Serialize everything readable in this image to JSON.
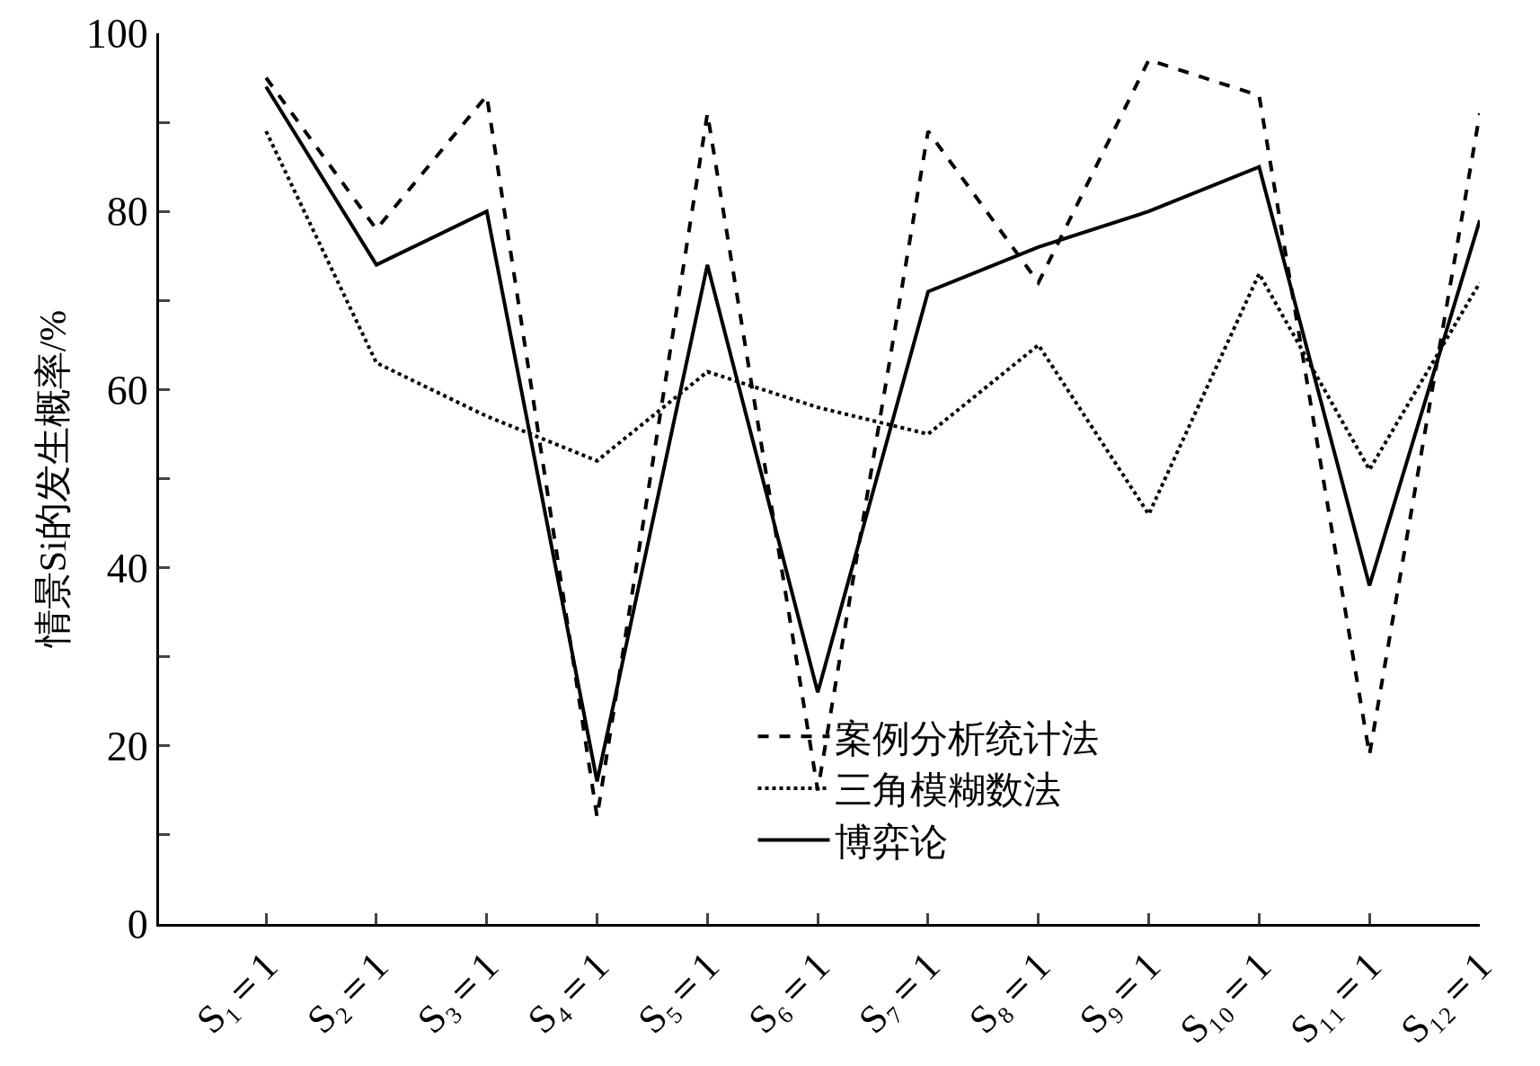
{
  "chart_data": {
    "type": "line",
    "ylabel": "情景Si的发生概率/%",
    "categories": [
      "S₁＝1",
      "S₂＝1",
      "S₃＝1",
      "S₄＝1",
      "S₅＝1",
      "S₆＝1",
      "S₇＝1",
      "S₈＝1",
      "S₉＝1",
      "S₁₀＝1",
      "S₁₁＝1",
      "S₁₂＝1"
    ],
    "series": [
      {
        "name": "案例分析统计法",
        "color": "#000000",
        "line_style": "dashed",
        "values": [
          95,
          78,
          93,
          12,
          91,
          15,
          89,
          72,
          97,
          93,
          19,
          91
        ]
      },
      {
        "name": "三角模糊数法",
        "color": "#000000",
        "line_style": "dotted",
        "values": [
          89,
          63,
          57,
          52,
          62,
          58,
          55,
          65,
          46,
          73,
          51,
          72
        ]
      },
      {
        "name": "博弈论",
        "color": "#000000",
        "line_style": "solid",
        "values": [
          94,
          74,
          80,
          16,
          74,
          26,
          71,
          76,
          80,
          85,
          38,
          79
        ]
      }
    ],
    "ylim": [
      0,
      100
    ],
    "yticks": [
      0,
      {
        "value": 10,
        "label": null
      },
      20,
      {
        "value": 30,
        "label": null
      },
      40,
      {
        "value": 50,
        "label": null
      },
      60,
      {
        "value": 70,
        "label": null
      },
      80,
      {
        "value": 90,
        "label": null
      },
      100
    ],
    "legend": "bottom right",
    "marker": "none"
  }
}
